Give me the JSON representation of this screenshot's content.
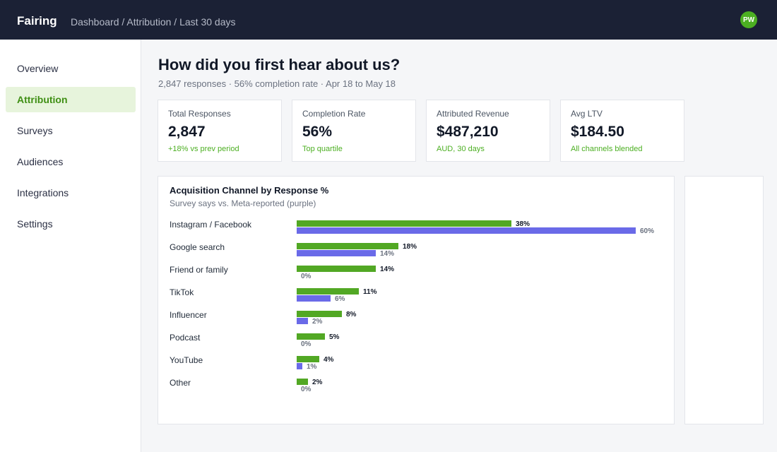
{
  "app": {
    "brand": "Fairing",
    "breadcrumb": "Dashboard / Attribution / Last 30 days",
    "avatar_initials": "PW"
  },
  "sidebar": {
    "items": [
      {
        "label": "Overview",
        "active": false
      },
      {
        "label": "Attribution",
        "active": true
      },
      {
        "label": "Surveys",
        "active": false
      },
      {
        "label": "Audiences",
        "active": false
      },
      {
        "label": "Integrations",
        "active": false
      },
      {
        "label": "Settings",
        "active": false
      }
    ]
  },
  "page": {
    "title": "How did you first hear about us?",
    "subtitle": "2,847 responses · 56% completion rate · Apr 18 to May 18"
  },
  "kpis": [
    {
      "label": "Total Responses",
      "value": "2,847",
      "note": "+18% vs prev period"
    },
    {
      "label": "Completion Rate",
      "value": "56%",
      "note": "Top quartile"
    },
    {
      "label": "Attributed Revenue",
      "value": "$487,210",
      "note": "AUD, 30 days"
    },
    {
      "label": "Avg LTV",
      "value": "$184.50",
      "note": "All channels blended"
    }
  ],
  "colors": {
    "accent_green": "#52a824",
    "meta_purple": "#6a6ae8",
    "nav_bg": "#1b2135"
  },
  "chart_data": {
    "type": "bar",
    "title": "Acquisition Channel by Response %",
    "subtitle": "Survey says vs. Meta-reported (purple)",
    "categories": [
      "Instagram / Facebook",
      "Google search",
      "Friend or family",
      "TikTok",
      "Influencer",
      "Podcast",
      "YouTube",
      "Other"
    ],
    "series": [
      {
        "values": [
          38,
          18,
          14,
          11,
          8,
          5,
          4,
          2
        ],
        "color": "#52a824",
        "unit": "%"
      },
      {
        "values": [
          60,
          14,
          0,
          6,
          2,
          0,
          1,
          0
        ],
        "color": "#6a6ae8",
        "unit": "%"
      }
    ],
    "xlim": [
      0,
      60
    ],
    "grid": false,
    "legend": "none"
  }
}
